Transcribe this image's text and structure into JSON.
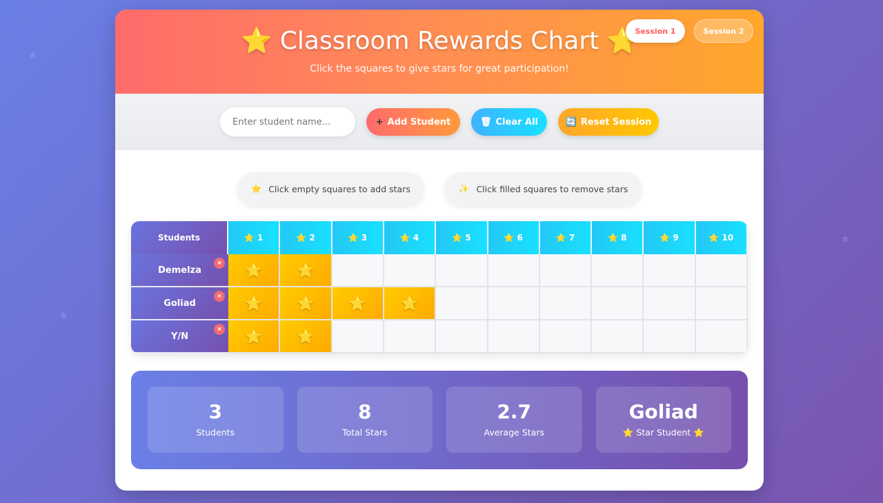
{
  "header": {
    "title": "⭐ Classroom Rewards Chart ⭐",
    "subtitle": "Click the squares to give stars for great participation!",
    "sessions": [
      "Session 1",
      "Session 2"
    ],
    "active_session": "Session 1"
  },
  "controls": {
    "placeholder": "Enter student name...",
    "value": "",
    "add": "Add Student",
    "add_icon": "+",
    "clear": "Clear All",
    "clear_icon": "🗑",
    "reset": "Reset Session",
    "reset_icon": "🔄"
  },
  "tips": [
    {
      "icon": "⭐",
      "text": "Click empty squares to add stars"
    },
    {
      "icon": "✨",
      "text": "Click filled squares to remove stars"
    }
  ],
  "grid": {
    "students_header": "Students",
    "columns": [
      "⭐ 1",
      "⭐ 2",
      "⭐ 3",
      "⭐ 4",
      "⭐ 5",
      "⭐ 6",
      "⭐ 7",
      "⭐ 8",
      "⭐ 9",
      "⭐ 10"
    ],
    "star_glyph": "⭐",
    "delete_glyph": "×",
    "rows": [
      {
        "name": "Demelza",
        "stars": 2
      },
      {
        "name": "Goliad",
        "stars": 4
      },
      {
        "name": "Y/N",
        "stars": 2
      }
    ]
  },
  "stats": [
    {
      "value": "3",
      "label": "Students"
    },
    {
      "value": "8",
      "label": "Total Stars"
    },
    {
      "value": "2.7",
      "label": "Average Stars"
    },
    {
      "value": "Goliad",
      "label": "⭐ Star Student ⭐"
    }
  ]
}
